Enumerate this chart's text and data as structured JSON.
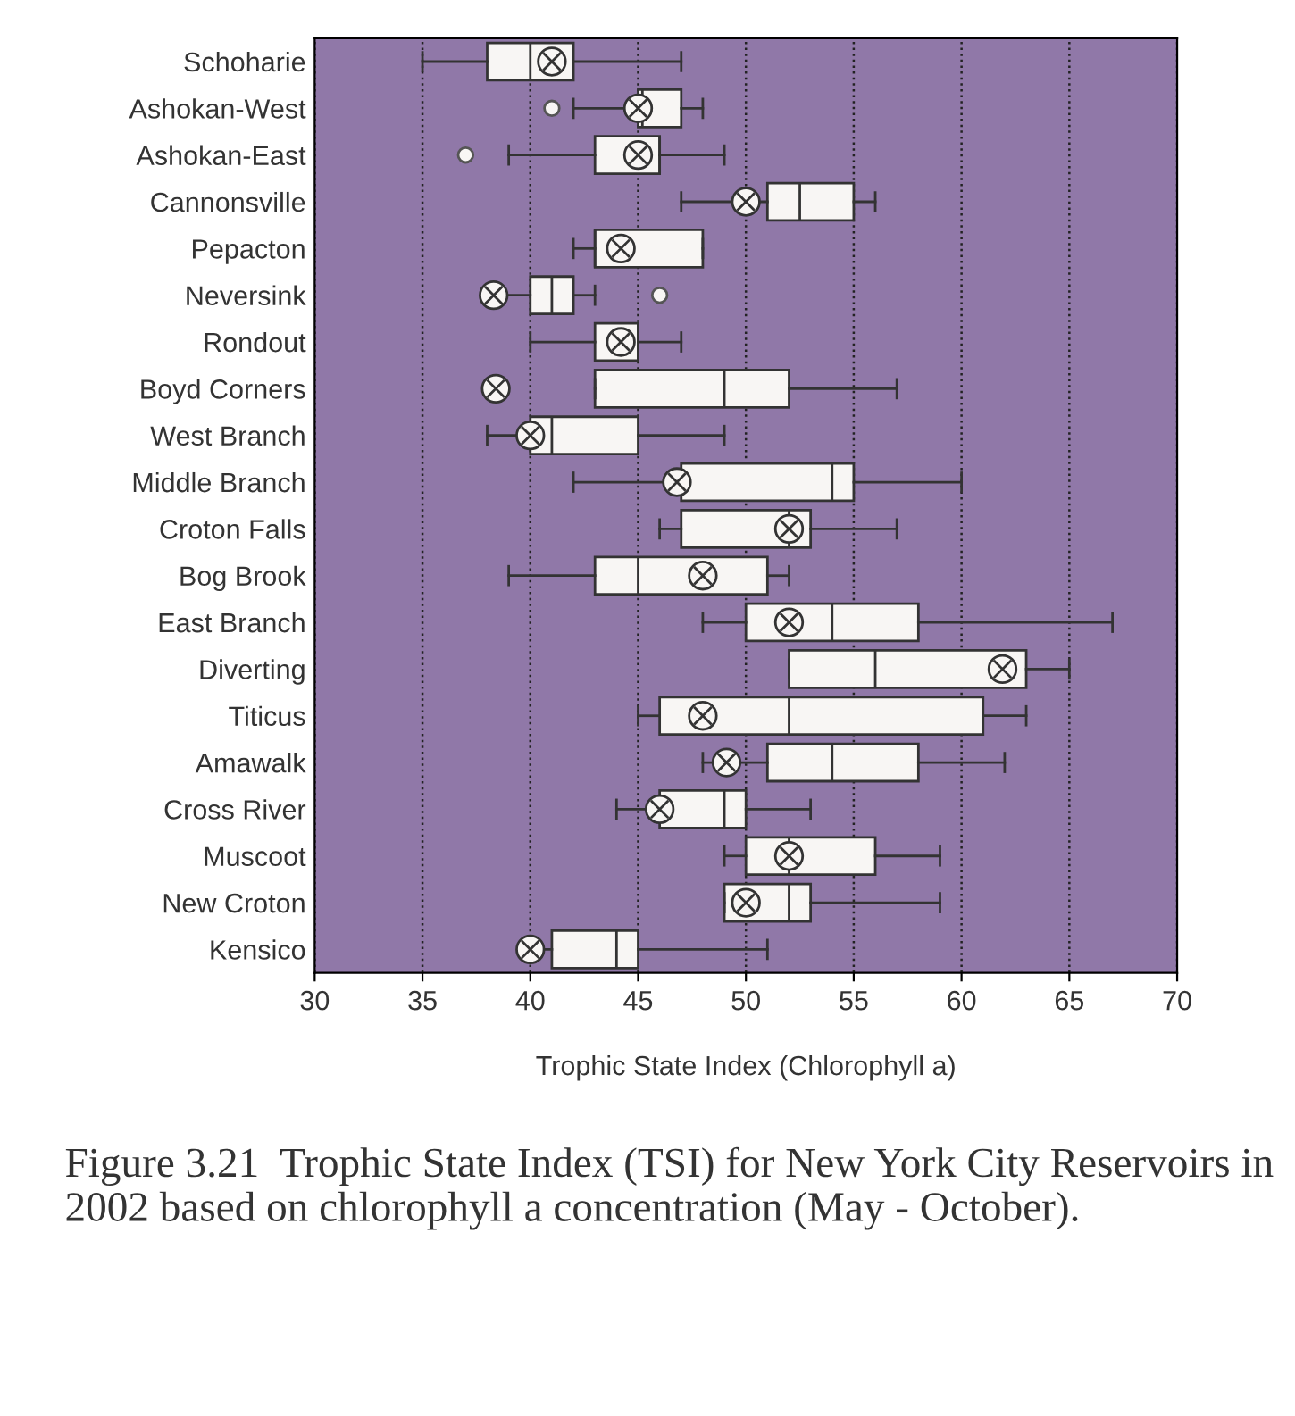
{
  "chart_data": {
    "type": "box",
    "orientation": "horizontal",
    "xlabel": "Trophic State Index (Chlorophyll a)",
    "categories": [
      "Schoharie",
      "Ashokan-West",
      "Ashokan-East",
      "Cannonsville",
      "Pepacton",
      "Neversink",
      "Rondout",
      "Boyd Corners",
      "West Branch",
      "Middle Branch",
      "Croton Falls",
      "Bog Brook",
      "East Branch",
      "Diverting",
      "Titicus",
      "Amawalk",
      "Cross River",
      "Muscoot",
      "New Croton",
      "Kensico"
    ],
    "boxes": [
      {
        "low": 35,
        "q1": 38,
        "median": 40,
        "q3": 42,
        "high": 47,
        "mean": 41
      },
      {
        "low": 42,
        "q1": 45,
        "median": 45.2,
        "q3": 47,
        "high": 48,
        "mean": 45,
        "outliers": [
          41
        ]
      },
      {
        "low": 39,
        "q1": 43,
        "median": 46,
        "q3": 46,
        "high": 49,
        "mean": 45,
        "outliers": [
          37
        ]
      },
      {
        "low": 47,
        "q1": 51,
        "median": 52.5,
        "q3": 55,
        "high": 56,
        "mean": 50
      },
      {
        "low": 42,
        "q1": 43,
        "median": 43,
        "q3": 48,
        "high": 48,
        "mean": 44.2
      },
      {
        "low": 38,
        "q1": 40,
        "median": 41,
        "q3": 42,
        "high": 43,
        "mean": 38.3,
        "outliers": [
          46
        ]
      },
      {
        "low": 40,
        "q1": 43,
        "median": 45,
        "q3": 45,
        "high": 47,
        "mean": 44.2
      },
      {
        "low": 43,
        "q1": 43,
        "median": 49,
        "q3": 52,
        "high": 57,
        "mean": 38.4
      },
      {
        "low": 38,
        "q1": 40,
        "median": 41,
        "q3": 45,
        "high": 49,
        "mean": 40
      },
      {
        "low": 42,
        "q1": 47,
        "median": 54,
        "q3": 55,
        "high": 60,
        "mean": 46.8
      },
      {
        "low": 46,
        "q1": 47,
        "median": 52,
        "q3": 53,
        "high": 57,
        "mean": 52
      },
      {
        "low": 39,
        "q1": 43,
        "median": 45,
        "q3": 51,
        "high": 52,
        "mean": 48
      },
      {
        "low": 48,
        "q1": 50,
        "median": 54,
        "q3": 58,
        "high": 67,
        "mean": 52
      },
      {
        "low": 52,
        "q1": 52,
        "median": 56,
        "q3": 63,
        "high": 65,
        "mean": 61.9
      },
      {
        "low": 45,
        "q1": 46,
        "median": 52,
        "q3": 61,
        "high": 63,
        "mean": 48
      },
      {
        "low": 48,
        "q1": 51,
        "median": 54,
        "q3": 58,
        "high": 62,
        "mean": 49.1
      },
      {
        "low": 44,
        "q1": 46,
        "median": 49,
        "q3": 50,
        "high": 53,
        "mean": 46
      },
      {
        "low": 49,
        "q1": 50,
        "median": 52,
        "q3": 56,
        "high": 59,
        "mean": 52
      },
      {
        "low": 49,
        "q1": 49,
        "median": 52,
        "q3": 53,
        "high": 59,
        "mean": 50
      },
      {
        "low": 40,
        "q1": 41,
        "median": 44,
        "q3": 45,
        "high": 51,
        "mean": 40
      }
    ],
    "xlim": [
      30,
      70
    ],
    "xticks": [
      30,
      35,
      40,
      45,
      50,
      55,
      60,
      65,
      70
    ],
    "grid": "x",
    "annotations": [
      "Figure 3.21  Trophic State Index (TSI) for New York City Reservoirs in 2002 based on chlorophyll a concentration (May - October)."
    ]
  }
}
